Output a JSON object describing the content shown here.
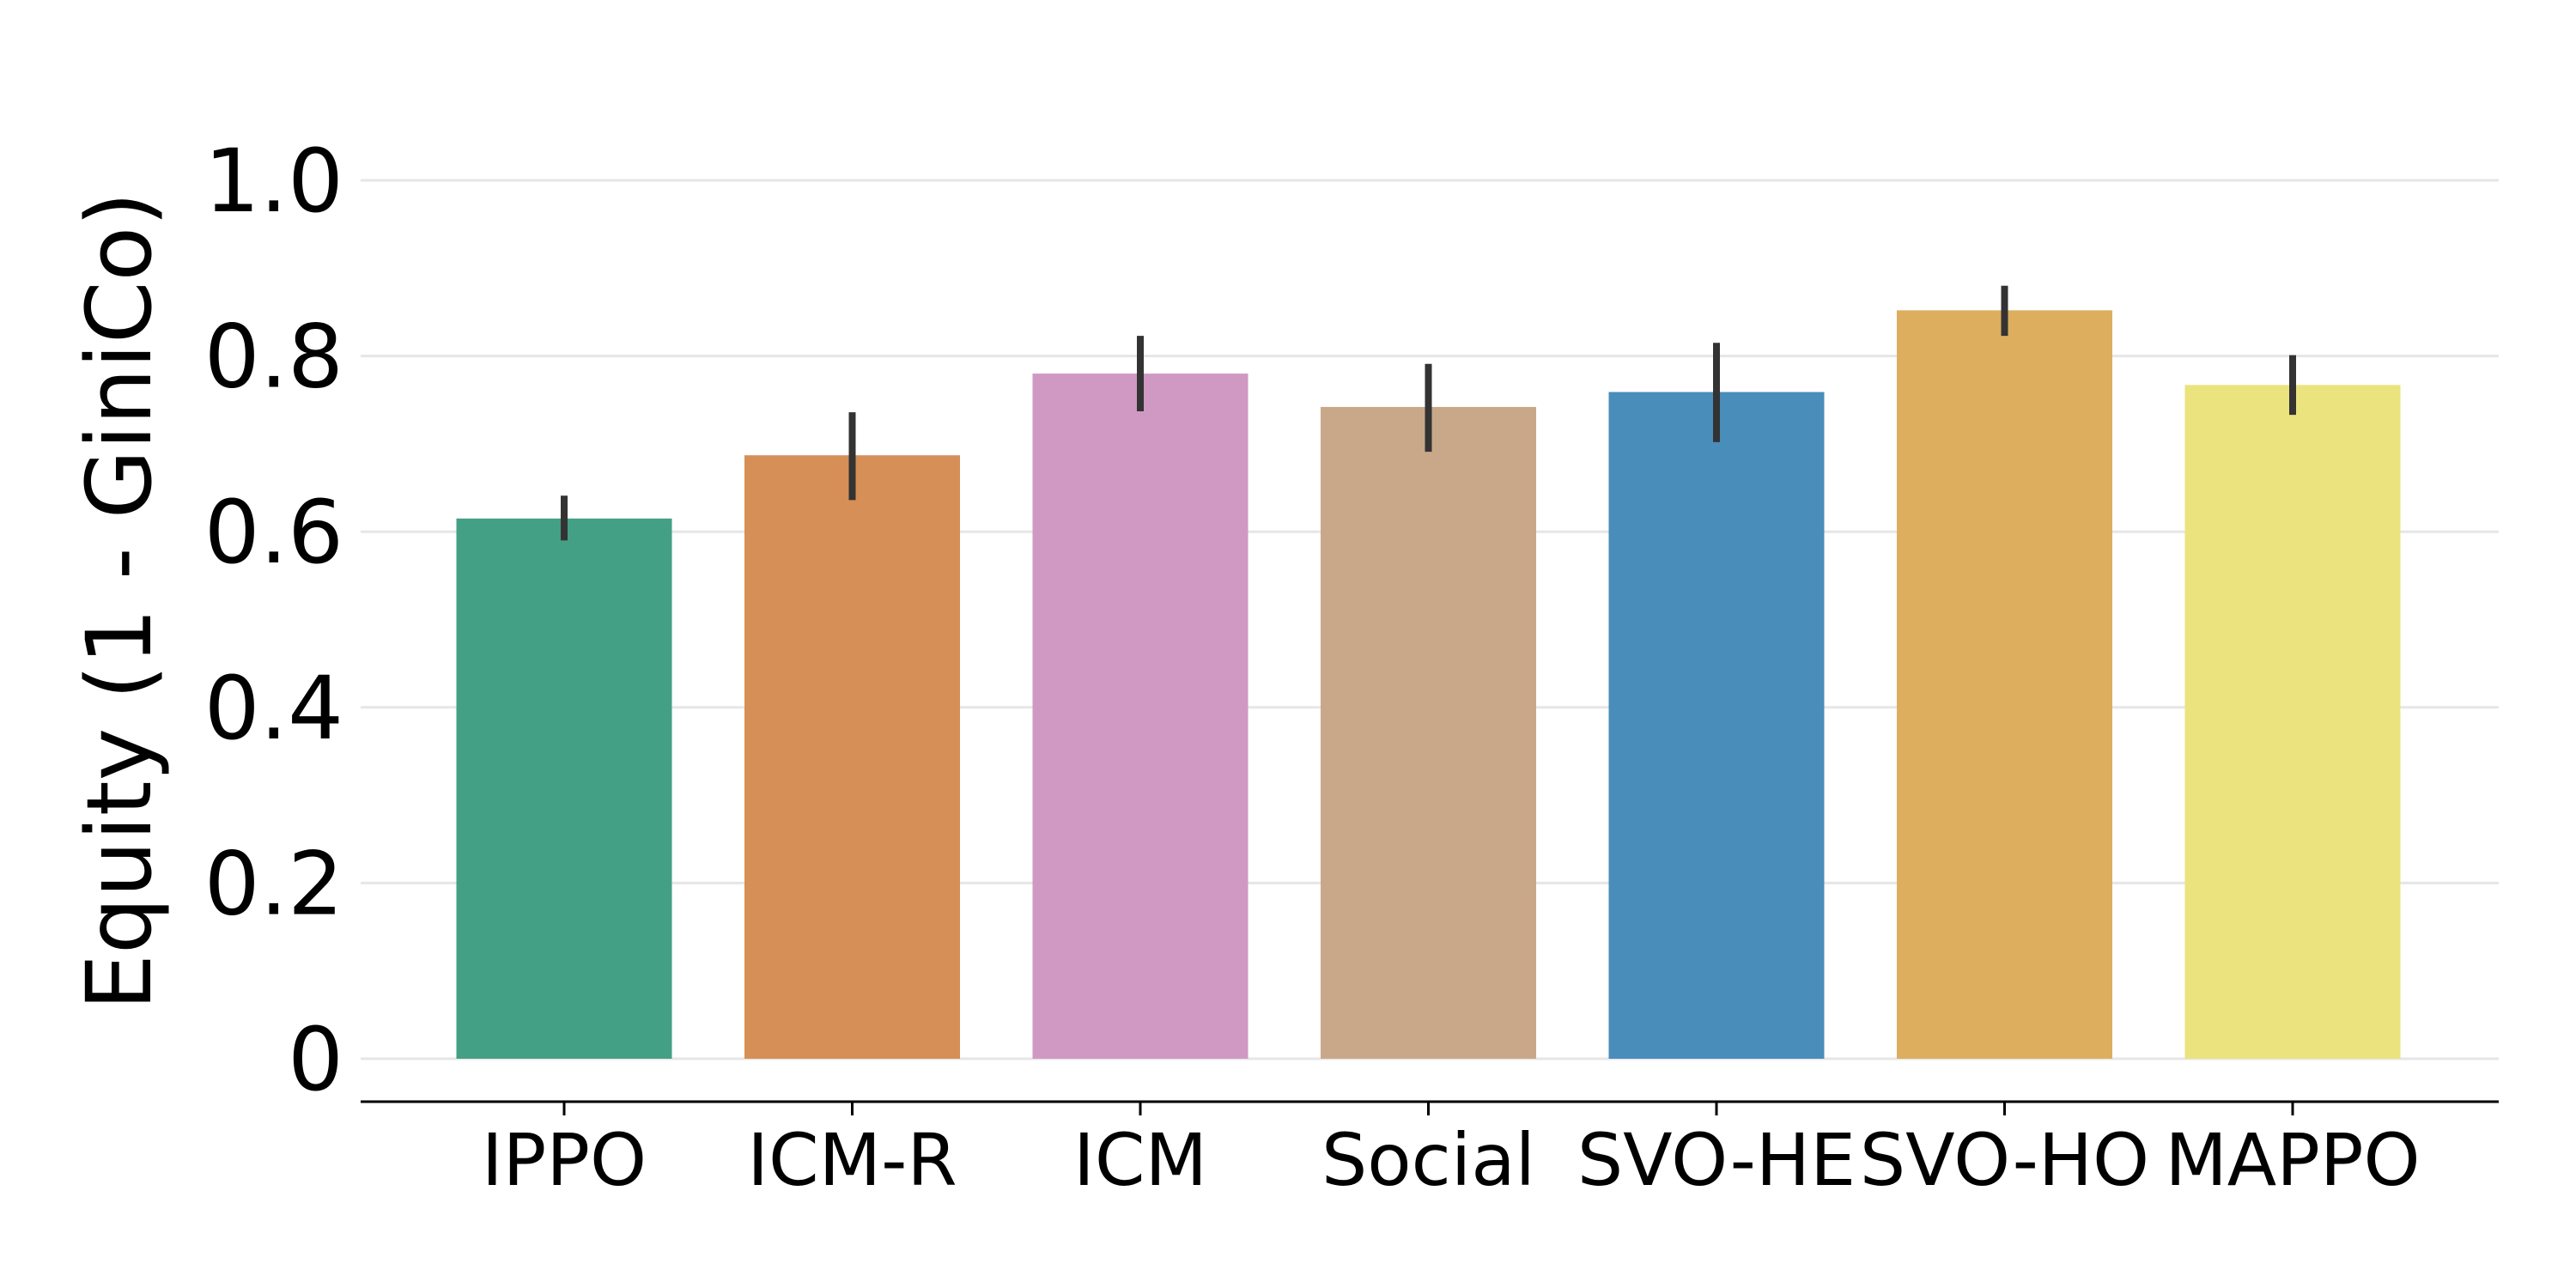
{
  "chart_data": {
    "type": "bar",
    "title": "",
    "xlabel": "",
    "ylabel": "Equity (1 - GiniCo)",
    "categories": [
      "IPPO",
      "ICM-R",
      "ICM",
      "Social",
      "SVO-HE",
      "SVO-HO",
      "MAPPO"
    ],
    "values": [
      0.615,
      0.687,
      0.78,
      0.742,
      0.759,
      0.852,
      0.767
    ],
    "error_low": [
      0.59,
      0.636,
      0.737,
      0.691,
      0.702,
      0.823,
      0.733
    ],
    "error_high": [
      0.641,
      0.736,
      0.823,
      0.791,
      0.815,
      0.88,
      0.801
    ],
    "colors": [
      "#44a084",
      "#d68f56",
      "#cf99c3",
      "#c9a88a",
      "#498dbb",
      "#dcae5e",
      "#ebe37d"
    ],
    "ylim": [
      0,
      1.0
    ],
    "yticks": [
      0,
      0.2,
      0.4,
      0.6,
      0.8,
      1.0
    ],
    "ytick_labels": [
      "0",
      "0.2",
      "0.4",
      "0.6",
      "0.8",
      "1.0"
    ],
    "grid": "horizontal",
    "error_bar_color": "#333333",
    "grid_color": "#e6e6e6",
    "axis_color": "#000000"
  }
}
